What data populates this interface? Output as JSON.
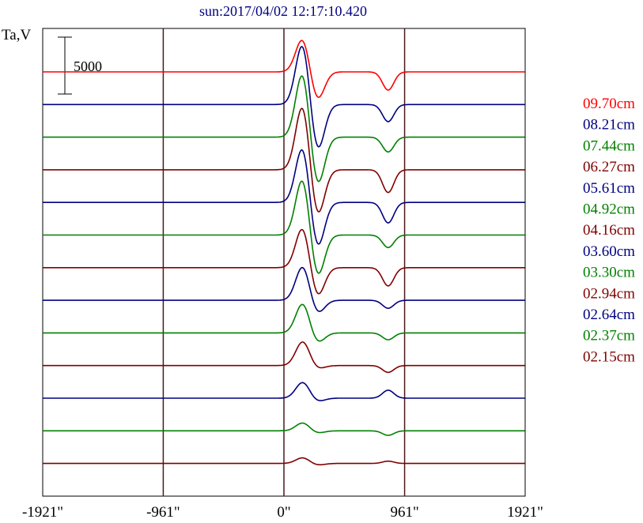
{
  "chart_data": {
    "type": "line",
    "title": "sun:2017/04/02 12:17:10.420",
    "ylabel": "Ta,V",
    "scale_bar_label": "5000",
    "x_ticks": [
      "-1921\"",
      "-961\"",
      "0\"",
      "961\"",
      "1921\""
    ],
    "x_tick_values": [
      -1921,
      -961,
      0,
      961,
      1921
    ],
    "xlim": [
      -1921,
      1921
    ],
    "vertical_gridlines": [
      -961,
      0,
      961
    ],
    "series": [
      {
        "name": "09.70cm",
        "color": "#ff0000",
        "peak": 3000,
        "trough": -2500,
        "second": -1600
      },
      {
        "name": "08.21cm",
        "color": "#000080",
        "peak": 5500,
        "trough": -4200,
        "second": -1500
      },
      {
        "name": "07.44cm",
        "color": "#008000",
        "peak": 5800,
        "trough": -4400,
        "second": -1300
      },
      {
        "name": "06.27cm",
        "color": "#800000",
        "peak": 5800,
        "trough": -4200,
        "second": -2000
      },
      {
        "name": "05.61cm",
        "color": "#000080",
        "peak": 5000,
        "trough": -4100,
        "second": -1800
      },
      {
        "name": "04.92cm",
        "color": "#008000",
        "peak": 5100,
        "trough": -3800,
        "second": -1100
      },
      {
        "name": "04.16cm",
        "color": "#800000",
        "peak": 3600,
        "trough": -2600,
        "second": -1600
      },
      {
        "name": "03.60cm",
        "color": "#000080",
        "peak": 3000,
        "trough": -1200,
        "second": -700
      },
      {
        "name": "03.30cm",
        "color": "#008000",
        "peak": 2600,
        "trough": -900,
        "second": -600
      },
      {
        "name": "02.94cm",
        "color": "#800000",
        "peak": 2100,
        "trough": -300,
        "second": -600
      },
      {
        "name": "02.64cm",
        "color": "#000080",
        "peak": 1400,
        "trough": -300,
        "second": 700
      },
      {
        "name": "02.37cm",
        "color": "#008000",
        "peak": 700,
        "trough": -200,
        "second": -400
      },
      {
        "name": "02.15cm",
        "color": "#800000",
        "peak": 500,
        "trough": -150,
        "second": 200
      }
    ]
  }
}
